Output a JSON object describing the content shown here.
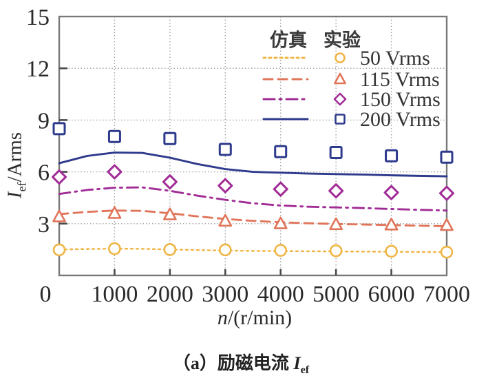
{
  "figure": {
    "caption": {
      "prefix": "（a）励磁电流 ",
      "symbol": "I",
      "subscript": "ef"
    },
    "x_axis": {
      "label_symbol": "n",
      "label_rest": "/(r/min)"
    },
    "y_axis": {
      "label_symbol": "I",
      "label_subscript": "ef",
      "label_rest": "/Arms"
    }
  },
  "legend": {
    "col_sim": "仿真",
    "col_exp": "实验"
  },
  "colors": {
    "gold": "#EFB545",
    "salmon": "#E0755A",
    "magenta": "#A12C96",
    "navy": "#2E3A8C",
    "grid": "#9C9C9C",
    "frame": "#787878",
    "tick": "#4A4A4A"
  },
  "chart_data": {
    "type": "line",
    "title": "（a）励磁电流 Ief",
    "xlabel": "n/(r/min)",
    "ylabel": "Ief/Arms",
    "xlim": [
      0,
      7000
    ],
    "ylim": [
      0,
      15
    ],
    "x_ticks": [
      0,
      1000,
      2000,
      3000,
      4000,
      5000,
      6000,
      7000
    ],
    "y_ticks": [
      3,
      6,
      9,
      12,
      15
    ],
    "grid": true,
    "legend_position": "top-right",
    "legend_columns": [
      "仿真",
      "实验"
    ],
    "series": [
      {
        "label": "50 Vrms",
        "color": "#EFB545",
        "line_style": "dotted",
        "marker": "circle",
        "simulation": {
          "x": [
            0,
            500,
            1000,
            1500,
            2000,
            2500,
            3000,
            3500,
            4000,
            4500,
            5000,
            5500,
            6000,
            6500,
            7000
          ],
          "y": [
            1.5,
            1.53,
            1.55,
            1.54,
            1.5,
            1.47,
            1.44,
            1.42,
            1.41,
            1.4,
            1.39,
            1.38,
            1.37,
            1.36,
            1.35
          ]
        },
        "experiment": {
          "x": [
            0,
            1000,
            2000,
            3000,
            4000,
            5000,
            6000,
            7000
          ],
          "y": [
            1.48,
            1.55,
            1.5,
            1.48,
            1.45,
            1.43,
            1.4,
            1.35
          ]
        }
      },
      {
        "label": "115 Vrms",
        "color": "#E0755A",
        "line_style": "dashed",
        "marker": "triangle",
        "simulation": {
          "x": [
            0,
            500,
            1000,
            1500,
            2000,
            2500,
            3000,
            3500,
            4000,
            4500,
            5000,
            5500,
            6000,
            6500,
            7000
          ],
          "y": [
            3.55,
            3.68,
            3.76,
            3.74,
            3.6,
            3.42,
            3.27,
            3.16,
            3.08,
            3.02,
            2.98,
            2.95,
            2.92,
            2.88,
            2.85
          ]
        },
        "experiment": {
          "x": [
            0,
            1000,
            2000,
            3000,
            4000,
            5000,
            6000,
            7000
          ],
          "y": [
            3.4,
            3.6,
            3.52,
            3.15,
            3.0,
            2.95,
            2.93,
            2.9
          ]
        }
      },
      {
        "label": "150 Vrms",
        "color": "#A12C96",
        "line_style": "dashdot",
        "marker": "diamond",
        "simulation": {
          "x": [
            0,
            500,
            1000,
            1500,
            2000,
            2500,
            3000,
            3500,
            4000,
            4500,
            5000,
            5500,
            6000,
            6500,
            7000
          ],
          "y": [
            4.72,
            4.95,
            5.08,
            5.1,
            4.9,
            4.62,
            4.38,
            4.18,
            4.05,
            3.98,
            3.94,
            3.9,
            3.85,
            3.8,
            3.76
          ]
        },
        "experiment": {
          "x": [
            0,
            1000,
            2000,
            3000,
            4000,
            5000,
            6000,
            7000
          ],
          "y": [
            5.7,
            6.0,
            5.42,
            5.2,
            5.0,
            4.9,
            4.8,
            4.76
          ]
        }
      },
      {
        "label": "200 Vrms",
        "color": "#2E3A8C",
        "line_style": "solid",
        "marker": "square",
        "simulation": {
          "x": [
            0,
            500,
            1000,
            1500,
            2000,
            2500,
            3000,
            3500,
            4000,
            4500,
            5000,
            5500,
            6000,
            6500,
            7000
          ],
          "y": [
            6.5,
            6.92,
            7.12,
            7.1,
            6.82,
            6.45,
            6.16,
            6.0,
            5.95,
            5.9,
            5.87,
            5.84,
            5.8,
            5.77,
            5.74
          ]
        },
        "experiment": {
          "x": [
            0,
            1000,
            2000,
            3000,
            4000,
            5000,
            6000,
            7000
          ],
          "y": [
            8.5,
            8.05,
            7.93,
            7.3,
            7.17,
            7.12,
            6.93,
            6.85
          ]
        }
      }
    ]
  }
}
